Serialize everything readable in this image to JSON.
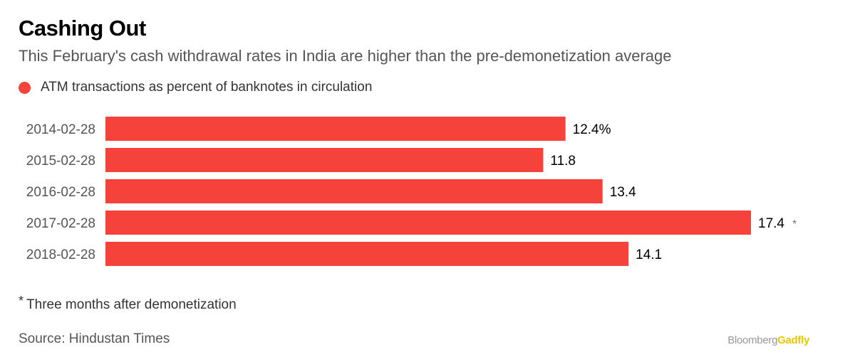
{
  "title": "Cashing Out",
  "subtitle": "This February's cash withdrawal rates in India are higher than the pre-demonetization average",
  "legend": {
    "label": "ATM transactions as percent of banknotes in circulation",
    "color": "#f5423a"
  },
  "footnote": {
    "marker": "*",
    "text": "Three months after demonetization"
  },
  "source": "Source: Hindustan Times",
  "brand": {
    "part1": "Bloomberg",
    "part2": "Gadfly",
    "part2_color": "#e8c800"
  },
  "chart_data": {
    "type": "bar",
    "orientation": "horizontal",
    "categories": [
      "2014-02-28",
      "2015-02-28",
      "2016-02-28",
      "2017-02-28",
      "2018-02-28"
    ],
    "values": [
      12.4,
      11.8,
      13.4,
      17.4,
      14.1
    ],
    "data_labels": [
      "12.4%",
      "11.8",
      "13.4",
      "17.4",
      "14.1"
    ],
    "annotations": [
      "",
      "",
      "",
      "*",
      ""
    ],
    "bar_color": "#f5423a",
    "xlim": [
      0,
      17.4
    ],
    "grid": false
  }
}
